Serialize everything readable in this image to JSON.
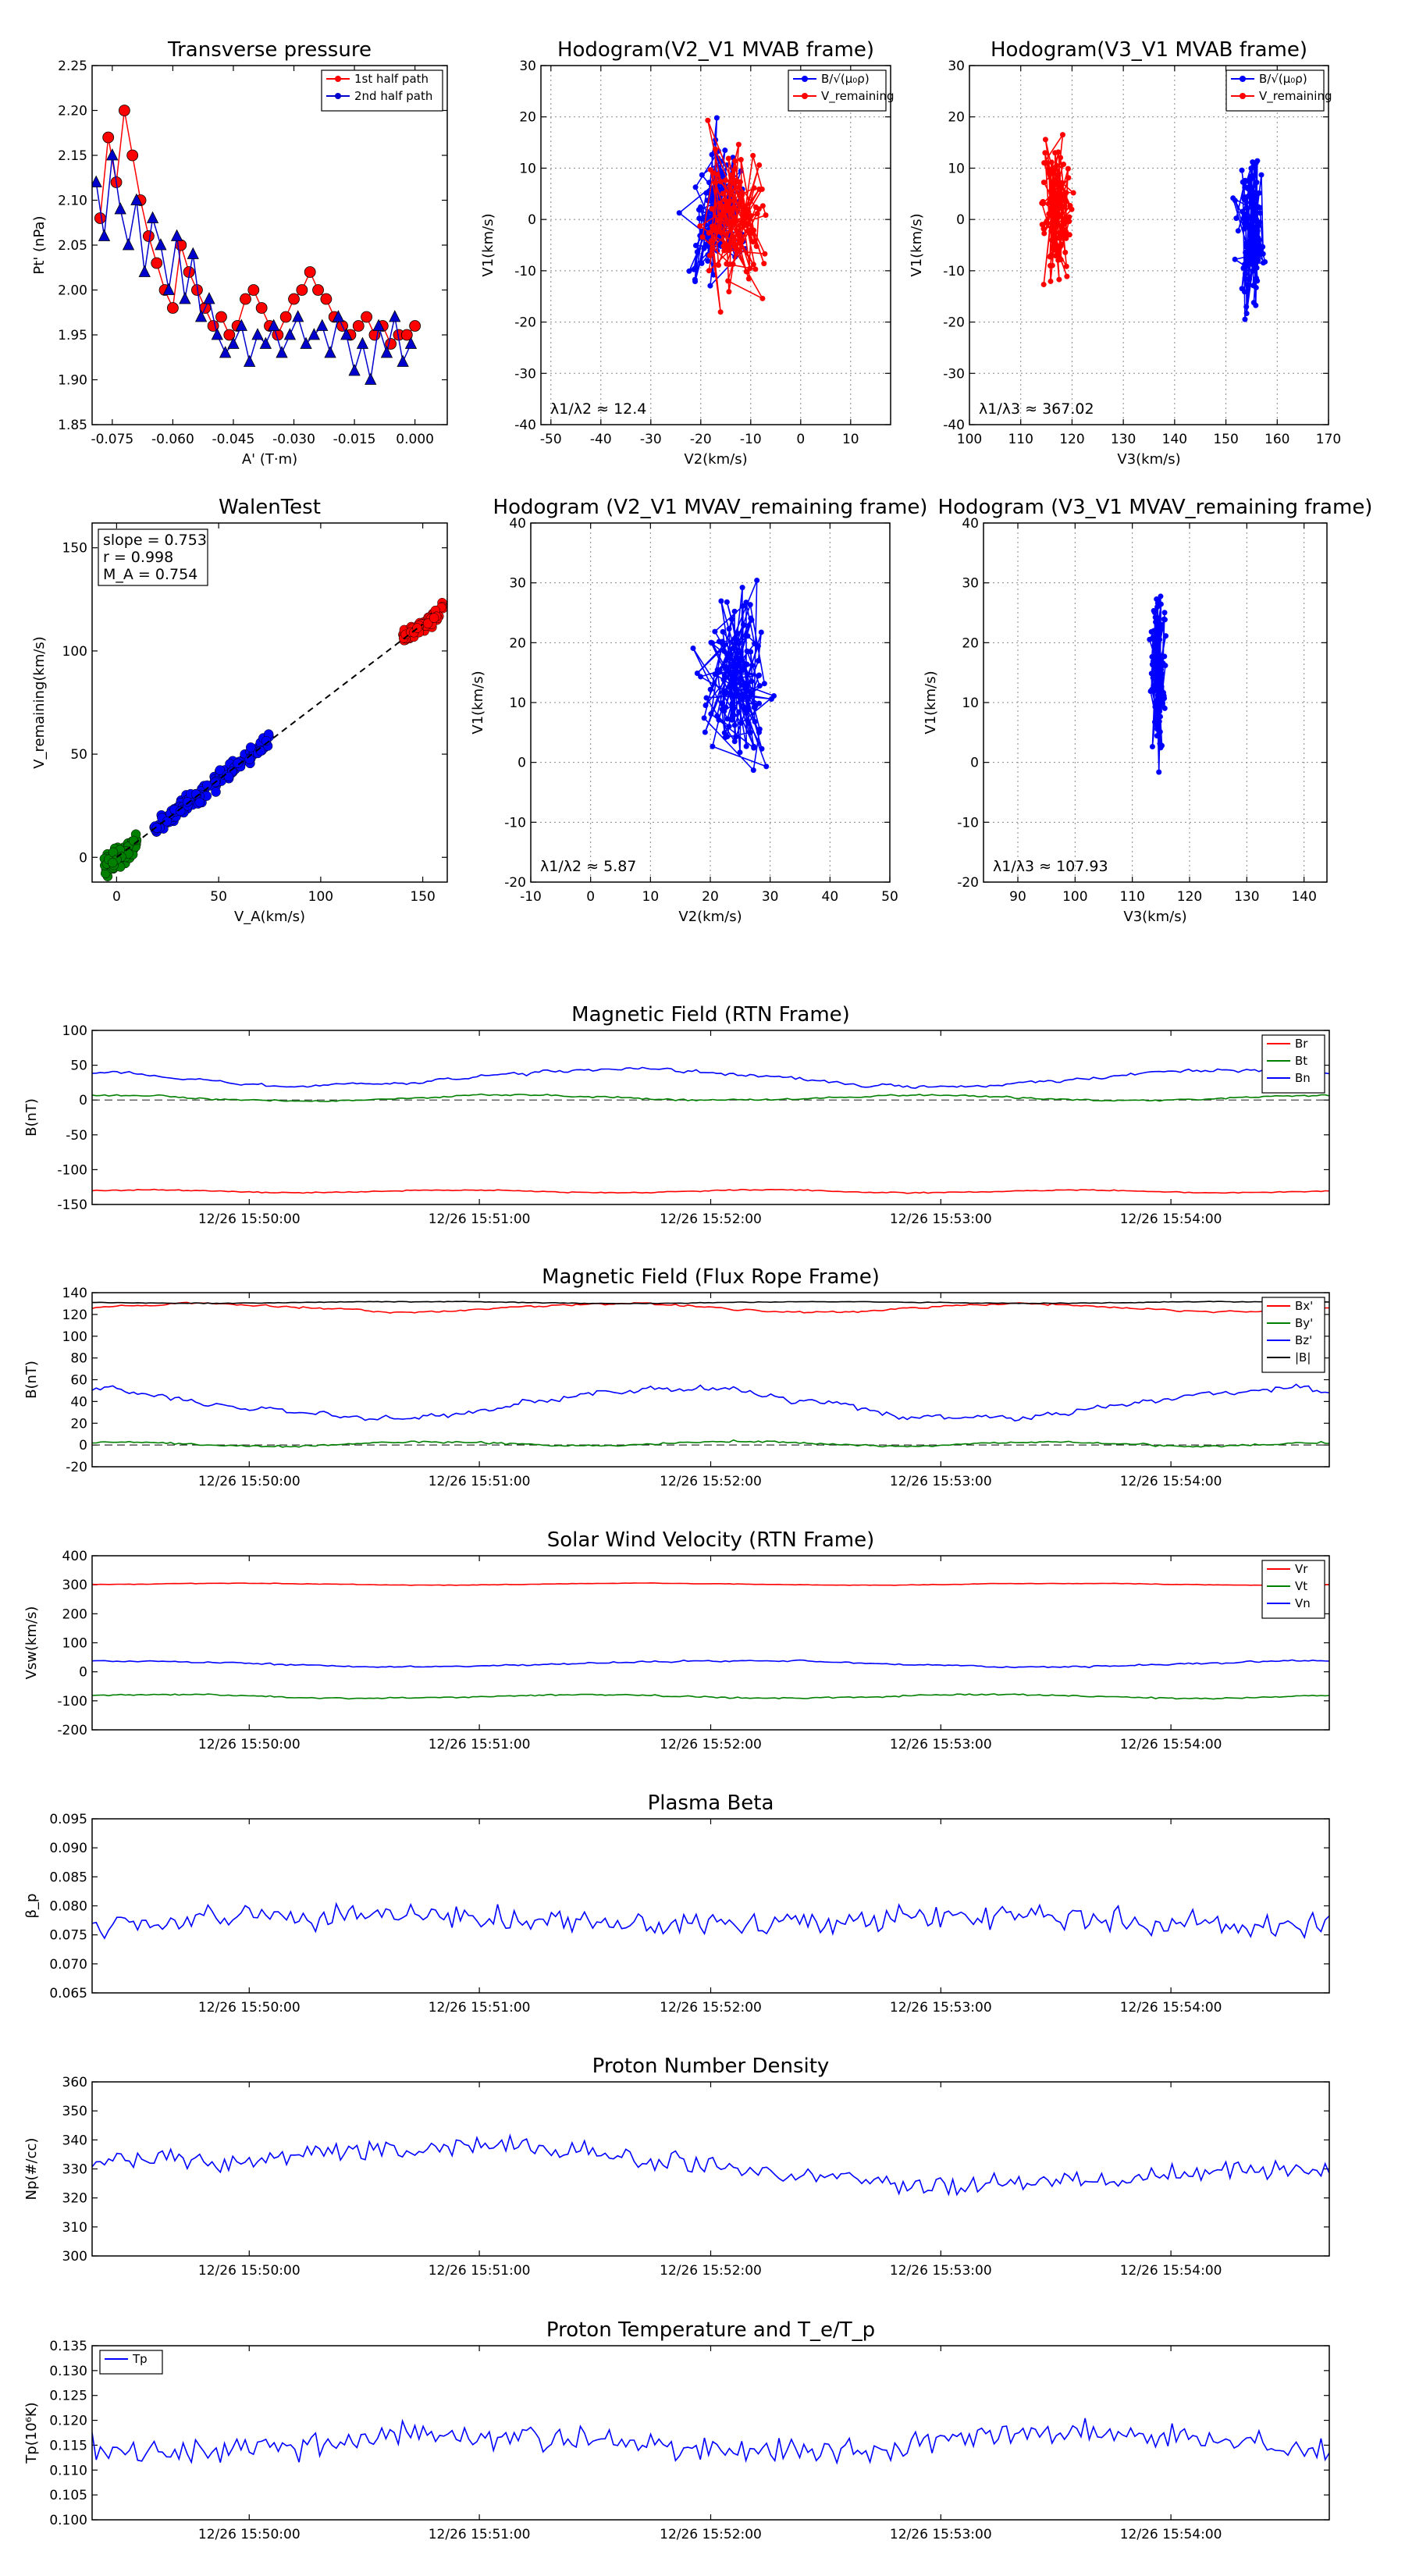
{
  "chart_data": [
    {
      "id": "tp",
      "type": "scatter",
      "title": "Transverse pressure",
      "xlabel": "A' (T·m)",
      "ylabel": "Pt' (nPa)",
      "xlim": [
        -0.08,
        0.008
      ],
      "ylim": [
        1.85,
        2.25
      ],
      "xticks": [
        "-0.075",
        "-0.060",
        "-0.045",
        "-0.030",
        "-0.015",
        "0.000"
      ],
      "xtickvals": [
        -0.075,
        -0.06,
        -0.045,
        -0.03,
        -0.015,
        0.0
      ],
      "yticks": [
        "1.85",
        "1.90",
        "1.95",
        "2.00",
        "2.05",
        "2.10",
        "2.15",
        "2.20",
        "2.25"
      ],
      "ytickvals": [
        1.85,
        1.9,
        1.95,
        2.0,
        2.05,
        2.1,
        2.15,
        2.2,
        2.25
      ],
      "legend": [
        "1st half path",
        "2nd half path"
      ],
      "series": [
        {
          "name": "1st half path",
          "color": "#ff0000",
          "marker": "circle",
          "x": [
            -0.078,
            -0.076,
            -0.074,
            -0.072,
            -0.07,
            -0.068,
            -0.066,
            -0.064,
            -0.062,
            -0.06,
            -0.058,
            -0.056,
            -0.054,
            -0.052,
            -0.05,
            -0.048,
            -0.046,
            -0.044,
            -0.042,
            -0.04,
            -0.038,
            -0.036,
            -0.034,
            -0.032,
            -0.03,
            -0.028,
            -0.026,
            -0.024,
            -0.022,
            -0.02,
            -0.018,
            -0.016,
            -0.014,
            -0.012,
            -0.01,
            -0.008,
            -0.006,
            -0.004,
            -0.002,
            0.0
          ],
          "y": [
            2.08,
            2.17,
            2.12,
            2.2,
            2.15,
            2.1,
            2.06,
            2.03,
            2.0,
            1.98,
            2.05,
            2.02,
            2.0,
            1.98,
            1.96,
            1.97,
            1.95,
            1.96,
            1.99,
            2.0,
            1.98,
            1.96,
            1.95,
            1.97,
            1.99,
            2.0,
            2.02,
            2.0,
            1.99,
            1.97,
            1.96,
            1.95,
            1.96,
            1.97,
            1.95,
            1.96,
            1.94,
            1.95,
            1.95,
            1.96
          ]
        },
        {
          "name": "2nd half path",
          "color": "#0000cc",
          "marker": "triangle",
          "x": [
            -0.079,
            -0.077,
            -0.075,
            -0.073,
            -0.071,
            -0.069,
            -0.067,
            -0.065,
            -0.063,
            -0.061,
            -0.059,
            -0.057,
            -0.055,
            -0.053,
            -0.051,
            -0.049,
            -0.047,
            -0.045,
            -0.043,
            -0.041,
            -0.039,
            -0.037,
            -0.035,
            -0.033,
            -0.031,
            -0.029,
            -0.027,
            -0.025,
            -0.023,
            -0.021,
            -0.019,
            -0.017,
            -0.015,
            -0.013,
            -0.011,
            -0.009,
            -0.007,
            -0.005,
            -0.003,
            -0.001
          ],
          "y": [
            2.12,
            2.06,
            2.15,
            2.09,
            2.05,
            2.1,
            2.02,
            2.08,
            2.05,
            2.0,
            2.06,
            1.99,
            2.04,
            1.97,
            1.99,
            1.95,
            1.93,
            1.94,
            1.96,
            1.92,
            1.95,
            1.94,
            1.96,
            1.93,
            1.95,
            1.97,
            1.94,
            1.95,
            1.96,
            1.93,
            1.97,
            1.95,
            1.91,
            1.94,
            1.9,
            1.96,
            1.93,
            1.97,
            1.92,
            1.94
          ]
        }
      ]
    },
    {
      "id": "h1",
      "type": "line",
      "title": "Hodogram(V2_V1 MVAB frame)",
      "xlabel": "V2(km/s)",
      "ylabel": "V1(km/s)",
      "xlim": [
        -52,
        18
      ],
      "ylim": [
        -40,
        30
      ],
      "xticks": [
        "-50",
        "-40",
        "-30",
        "-20",
        "-10",
        "0",
        "10"
      ],
      "xtickvals": [
        -50,
        -40,
        -30,
        -20,
        -10,
        0,
        10
      ],
      "yticks": [
        "-40",
        "-30",
        "-20",
        "-10",
        "0",
        "10",
        "20",
        "30"
      ],
      "ytickvals": [
        -40,
        -30,
        -20,
        -10,
        0,
        10,
        20,
        30
      ],
      "legend": [
        "B/√(μ₀ρ)",
        "V_remaining"
      ],
      "annotation": "λ1/λ2 ≈ 12.4",
      "series": [
        {
          "name": "B/√(μ₀ρ)",
          "color": "#0000ff",
          "gen": {
            "cx": -17,
            "cy": 0,
            "sx": 5,
            "sy": 13,
            "n": 110,
            "seed": 11
          }
        },
        {
          "name": "V_remaining",
          "color": "#ff0000",
          "gen": {
            "cx": -13,
            "cy": 0,
            "sx": 6,
            "sy": 13,
            "n": 110,
            "seed": 23
          }
        }
      ]
    },
    {
      "id": "h2",
      "type": "line",
      "title": "Hodogram(V3_V1 MVAB frame)",
      "xlabel": "V3(km/s)",
      "ylabel": "V1(km/s)",
      "xlim": [
        100,
        170
      ],
      "ylim": [
        -40,
        30
      ],
      "xticks": [
        "100",
        "110",
        "120",
        "130",
        "140",
        "150",
        "160",
        "170"
      ],
      "xtickvals": [
        100,
        110,
        120,
        130,
        140,
        150,
        160,
        170
      ],
      "yticks": [
        "-40",
        "-30",
        "-20",
        "-10",
        "0",
        "10",
        "20",
        "30"
      ],
      "ytickvals": [
        -40,
        -30,
        -20,
        -10,
        0,
        10,
        20,
        30
      ],
      "legend": [
        "B/√(μ₀ρ)",
        "V_remaining"
      ],
      "annotation": "λ1/λ3 ≈ 367.02",
      "series": [
        {
          "name": "B/√(μ₀ρ)",
          "color": "#0000ff",
          "gen": {
            "cx": 155,
            "cy": -2,
            "sx": 2.5,
            "sy": 13,
            "n": 110,
            "seed": 31
          }
        },
        {
          "name": "V_remaining",
          "color": "#ff0000",
          "gen": {
            "cx": 117,
            "cy": 2,
            "sx": 2.5,
            "sy": 13,
            "n": 110,
            "seed": 41
          }
        }
      ]
    },
    {
      "id": "walen",
      "type": "scatter",
      "title": "WalenTest",
      "xlabel": "V_A(km/s)",
      "ylabel": "V_remaining(km/s)",
      "xlim": [
        -12,
        162
      ],
      "ylim": [
        -12,
        162
      ],
      "xticks": [
        "0",
        "50",
        "100",
        "150"
      ],
      "xtickvals": [
        0,
        50,
        100,
        150
      ],
      "yticks": [
        "0",
        "50",
        "100",
        "150"
      ],
      "ytickvals": [
        0,
        50,
        100,
        150
      ],
      "annotation": [
        "slope = 0.753",
        "r = 0.998",
        "M_A = 0.754"
      ],
      "fit": {
        "slope": 0.753,
        "intercept": 0
      },
      "series": [
        {
          "color": "#008000",
          "gen": {
            "x0": -6,
            "x1": 10,
            "slope": 0.753,
            "noise": 4,
            "n": 70,
            "seed": 5
          }
        },
        {
          "color": "#0000ff",
          "gen": {
            "x0": 18,
            "x1": 75,
            "slope": 0.753,
            "noise": 3,
            "n": 160,
            "seed": 7
          }
        },
        {
          "color": "#ff0000",
          "gen": {
            "x0": 140,
            "x1": 160,
            "slope": 0.753,
            "noise": 2.5,
            "n": 80,
            "seed": 9
          }
        }
      ]
    },
    {
      "id": "h3",
      "type": "line",
      "title": "Hodogram (V2_V1 MVAV_remaining frame)",
      "xlabel": "V2(km/s)",
      "ylabel": "V1(km/s)",
      "xlim": [
        -10,
        50
      ],
      "ylim": [
        -20,
        40
      ],
      "xticks": [
        "-10",
        "0",
        "10",
        "20",
        "30",
        "40",
        "50"
      ],
      "xtickvals": [
        -10,
        0,
        10,
        20,
        30,
        40,
        50
      ],
      "yticks": [
        "-20",
        "-10",
        "0",
        "10",
        "20",
        "30",
        "40"
      ],
      "ytickvals": [
        -20,
        -10,
        0,
        10,
        20,
        30,
        40
      ],
      "annotation": "λ1/λ2 ≈ 5.87",
      "series": [
        {
          "color": "#0000ff",
          "gen": {
            "cx": 24,
            "cy": 14,
            "sx": 5,
            "sy": 12,
            "n": 130,
            "seed": 51
          }
        }
      ]
    },
    {
      "id": "h4",
      "type": "line",
      "title": "Hodogram (V3_V1 MVAV_remaining frame)",
      "xlabel": "V3(km/s)",
      "ylabel": "V1(km/s)",
      "xlim": [
        84,
        144
      ],
      "ylim": [
        -20,
        40
      ],
      "xticks": [
        "90",
        "100",
        "110",
        "120",
        "130",
        "140"
      ],
      "xtickvals": [
        90,
        100,
        110,
        120,
        130,
        140
      ],
      "yticks": [
        "-20",
        "-10",
        "0",
        "10",
        "20",
        "30",
        "40"
      ],
      "ytickvals": [
        -20,
        -10,
        0,
        10,
        20,
        30,
        40
      ],
      "annotation": "λ1/λ3 ≈ 107.93",
      "series": [
        {
          "color": "#0000ff",
          "gen": {
            "cx": 114.5,
            "cy": 14,
            "sx": 1.2,
            "sy": 12,
            "n": 130,
            "seed": 61
          }
        }
      ]
    },
    {
      "id": "ts1",
      "type": "line",
      "title": "Magnetic Field (RTN Frame)",
      "ylabel": "B(nT)",
      "ylim": [
        -150,
        100
      ],
      "yticks": [
        "-150",
        "-100",
        "-50",
        "0",
        "50",
        "100"
      ],
      "ytickvals": [
        -150,
        -100,
        -50,
        0,
        50,
        100
      ],
      "xticks": [
        "12/26 15:50:00",
        "12/26 15:51:00",
        "12/26 15:52:00",
        "12/26 15:53:00",
        "12/26 15:54:00"
      ],
      "legend_pos": "top-right",
      "zero_line": true,
      "series": [
        {
          "name": "Br",
          "color": "#ff0000",
          "gen": {
            "base": -131,
            "amp": 2,
            "noise": 1.2,
            "wave": 4,
            "seed": 101
          }
        },
        {
          "name": "Bt",
          "color": "#008000",
          "gen": {
            "base": 3,
            "amp": 4,
            "noise": 2,
            "wave": 3,
            "seed": 102
          }
        },
        {
          "name": "Bn",
          "color": "#0000ff",
          "gen": {
            "base": 32,
            "amp": 12,
            "noise": 3,
            "wave": 2,
            "seed": 103
          }
        }
      ]
    },
    {
      "id": "ts2",
      "type": "line",
      "title": "Magnetic Field (Flux Rope Frame)",
      "ylabel": "B(nT)",
      "ylim": [
        -20,
        140
      ],
      "yticks": [
        "-20",
        "0",
        "20",
        "40",
        "60",
        "80",
        "100",
        "120",
        "140"
      ],
      "ytickvals": [
        -20,
        0,
        20,
        40,
        60,
        80,
        100,
        120,
        140
      ],
      "xticks": [
        "12/26 15:50:00",
        "12/26 15:51:00",
        "12/26 15:52:00",
        "12/26 15:53:00",
        "12/26 15:54:00"
      ],
      "legend_pos": "top-right",
      "zero_line": true,
      "series": [
        {
          "name": "Bx'",
          "color": "#ff0000",
          "gen": {
            "base": 126,
            "amp": 4,
            "noise": 1.2,
            "wave": 3,
            "seed": 201
          }
        },
        {
          "name": "By'",
          "color": "#008000",
          "gen": {
            "base": 1,
            "amp": 2,
            "noise": 1.5,
            "wave": 4,
            "seed": 202
          }
        },
        {
          "name": "Bz'",
          "color": "#0000ff",
          "gen": {
            "base": 38,
            "amp": 13,
            "noise": 3,
            "wave": 2,
            "seed": 203
          }
        },
        {
          "name": "|B|",
          "color": "#000000",
          "gen": {
            "base": 131,
            "amp": 0.8,
            "noise": 0.5,
            "wave": 3,
            "seed": 204
          }
        }
      ]
    },
    {
      "id": "ts3",
      "type": "line",
      "title": "Solar Wind Velocity (RTN Frame)",
      "ylabel": "Vsw(km/s)",
      "ylim": [
        -200,
        400
      ],
      "yticks": [
        "-200",
        "-100",
        "0",
        "100",
        "200",
        "300",
        "400"
      ],
      "ytickvals": [
        -200,
        -100,
        0,
        100,
        200,
        300,
        400
      ],
      "xticks": [
        "12/26 15:50:00",
        "12/26 15:51:00",
        "12/26 15:52:00",
        "12/26 15:53:00",
        "12/26 15:54:00"
      ],
      "legend_pos": "top-right",
      "zero_line": false,
      "series": [
        {
          "name": "Vr",
          "color": "#ff0000",
          "gen": {
            "base": 302,
            "amp": 3,
            "noise": 1.5,
            "wave": 3,
            "seed": 301
          }
        },
        {
          "name": "Vt",
          "color": "#008000",
          "gen": {
            "base": -85,
            "amp": 6,
            "noise": 4,
            "wave": 3,
            "seed": 302
          }
        },
        {
          "name": "Vn",
          "color": "#0000ff",
          "gen": {
            "base": 28,
            "amp": 10,
            "noise": 4,
            "wave": 2,
            "seed": 303
          }
        }
      ]
    },
    {
      "id": "ts4",
      "type": "line",
      "title": "Plasma Beta",
      "ylabel": "β_p",
      "ylim": [
        0.065,
        0.095
      ],
      "yticks": [
        "0.065",
        "0.070",
        "0.075",
        "0.080",
        "0.085",
        "0.090",
        "0.095"
      ],
      "ytickvals": [
        0.065,
        0.07,
        0.075,
        0.08,
        0.085,
        0.09,
        0.095
      ],
      "xticks": [
        "12/26 15:50:00",
        "12/26 15:51:00",
        "12/26 15:52:00",
        "12/26 15:53:00",
        "12/26 15:54:00"
      ],
      "series": [
        {
          "color": "#0000ff",
          "gen": {
            "base": 0.0775,
            "amp": 0.0008,
            "noise": 0.0035,
            "wave": 2,
            "seed": 401
          }
        }
      ]
    },
    {
      "id": "ts5",
      "type": "line",
      "title": "Proton Number Density",
      "ylabel": "Np(#/cc)",
      "ylim": [
        300,
        360
      ],
      "yticks": [
        "300",
        "310",
        "320",
        "330",
        "340",
        "350",
        "360"
      ],
      "ytickvals": [
        300,
        310,
        320,
        330,
        340,
        350,
        360
      ],
      "xticks": [
        "12/26 15:50:00",
        "12/26 15:51:00",
        "12/26 15:52:00",
        "12/26 15:53:00",
        "12/26 15:54:00"
      ],
      "series": [
        {
          "color": "#0000ff",
          "gen": {
            "base": 331,
            "amp": 4,
            "noise": 5.5,
            "wave": 1.5,
            "trend": -12,
            "seed": 501
          }
        }
      ]
    },
    {
      "id": "ts6",
      "type": "line",
      "title": "Proton Temperature and T_e/T_p",
      "ylabel": "Tp(10⁶K)",
      "ylim": [
        0.1,
        0.135
      ],
      "yticks": [
        "0.100",
        "0.105",
        "0.110",
        "0.115",
        "0.120",
        "0.125",
        "0.130",
        "0.135"
      ],
      "ytickvals": [
        0.1,
        0.105,
        0.11,
        0.115,
        0.12,
        0.125,
        0.13,
        0.135
      ],
      "xticks": [
        "12/26 15:50:00",
        "12/26 15:51:00",
        "12/26 15:52:00",
        "12/26 15:53:00",
        "12/26 15:54:00"
      ],
      "legend_pos": "top-left",
      "series": [
        {
          "name": "Tp",
          "color": "#0000ff",
          "gen": {
            "base": 0.1155,
            "amp": 0.002,
            "noise": 0.0045,
            "wave": 2,
            "seed": 601
          }
        }
      ]
    }
  ]
}
